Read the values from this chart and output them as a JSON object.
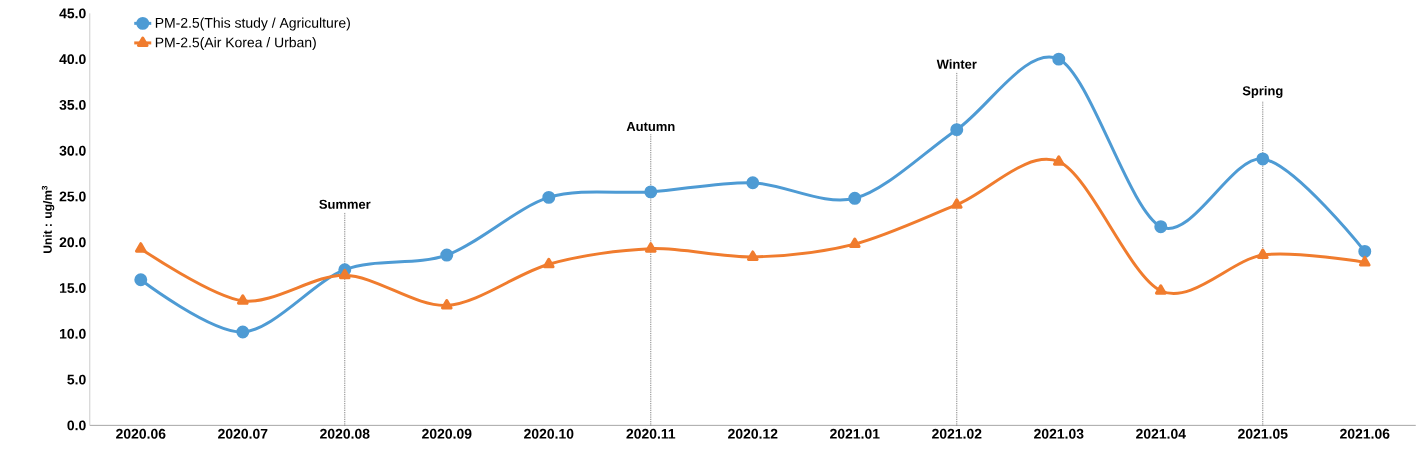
{
  "chart_data": {
    "type": "line",
    "ylabel": "Unit : ug/m$^{3}$",
    "categories": [
      "2020.06",
      "2020.07",
      "2020.08",
      "2020.09",
      "2020.10",
      "2020.11",
      "2020.12",
      "2021.01",
      "2021.02",
      "2021.03",
      "2021.04",
      "2021.05",
      "2021.06"
    ],
    "series": [
      {
        "name": "PM-2.5(This study / Agriculture)",
        "color": "#4e9bd4",
        "marker": "circle",
        "values": [
          15.9,
          10.2,
          17.0,
          18.6,
          24.9,
          25.5,
          26.5,
          24.8,
          32.3,
          40.0,
          21.7,
          29.1,
          19.0
        ]
      },
      {
        "name": "PM-2.5(Air Korea /  Urban)",
        "color": "#f07c2e",
        "marker": "triangle",
        "values": [
          19.3,
          13.6,
          16.4,
          13.1,
          17.6,
          19.3,
          18.4,
          19.8,
          24.1,
          28.8,
          14.7,
          18.6,
          17.8
        ]
      }
    ],
    "ylim": [
      0,
      45
    ],
    "yticks": [
      {
        "value": 0,
        "label": "0.0"
      },
      {
        "value": 5,
        "label": "5.0"
      },
      {
        "value": 10,
        "label": "10.0"
      },
      {
        "value": 15,
        "label": "15.0"
      },
      {
        "value": 20,
        "label": "20.0"
      },
      {
        "value": 25,
        "label": "25.0"
      },
      {
        "value": 30,
        "label": "30.0"
      },
      {
        "value": 35,
        "label": "35.0"
      },
      {
        "value": 40,
        "label": "40.0"
      },
      {
        "value": 45,
        "label": "45.0"
      }
    ],
    "ref_lines": [
      {
        "axis": "x",
        "value": "2020.08",
        "label": "Summer",
        "color": "#404040",
        "line_style": "dotted"
      },
      {
        "axis": "x",
        "value": "2020.11",
        "label": "Autumn",
        "color": "#404040",
        "line_style": "dotted"
      },
      {
        "axis": "x",
        "value": "2021.02",
        "label": "Winter",
        "color": "#404040",
        "line_style": "dotted"
      },
      {
        "axis": "x",
        "value": "2021.05",
        "label": "Spring",
        "color": "#404040",
        "line_style": "dotted"
      }
    ],
    "grid": false,
    "legend": "top left",
    "line_style": "solid"
  }
}
